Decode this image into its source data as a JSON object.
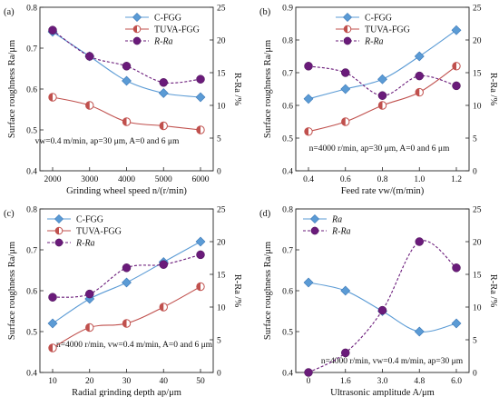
{
  "figure_title": "",
  "chart_data": [
    {
      "panel": "(a)",
      "type": "line",
      "xlabel": "Grinding wheel speed n/(r/min)",
      "ylabel": "Surface roughness Ra/μm",
      "ylabel2": "R-Ra /%",
      "x": [
        2000,
        3000,
        4000,
        5000,
        6000
      ],
      "xticks": [
        "2000",
        "3000",
        "4000",
        "5000",
        "6000"
      ],
      "ylim": [
        0.4,
        0.8
      ],
      "yticks": [
        "0.4",
        "0.5",
        "0.6",
        "0.7",
        "0.8"
      ],
      "y2lim": [
        0,
        25
      ],
      "y2ticks": [
        "0",
        "5",
        "10",
        "15",
        "20",
        "25"
      ],
      "condition": "vw=0.4 m/min, ap=30 μm, A=0 and 6 μm",
      "legend_position": "top-right",
      "series": [
        {
          "name": "C-FGG",
          "axis": "left",
          "marker": "diamond",
          "color": "#5b9bd5",
          "values": [
            0.74,
            0.68,
            0.62,
            0.59,
            0.58
          ]
        },
        {
          "name": "TUVA-FGG",
          "axis": "left",
          "marker": "half-circle",
          "color": "#c0504d",
          "values": [
            0.58,
            0.56,
            0.52,
            0.51,
            0.5
          ]
        },
        {
          "name": "R-Ra",
          "axis": "right",
          "marker": "circle",
          "color": "#6a1b7a",
          "dashed": true,
          "values": [
            21.5,
            17.5,
            16.0,
            13.5,
            14.0
          ]
        }
      ]
    },
    {
      "panel": "(b)",
      "type": "line",
      "xlabel": "Feed rate vw/(m/min)",
      "ylabel": "Surface roughness Ra/μm",
      "ylabel2": "R-Ra /%",
      "x": [
        0.4,
        0.6,
        0.8,
        1.0,
        1.2
      ],
      "xticks": [
        "0.4",
        "0.6",
        "0.8",
        "1.0",
        "1.2"
      ],
      "ylim": [
        0.4,
        0.9
      ],
      "yticks": [
        "0.4",
        "0.5",
        "0.6",
        "0.7",
        "0.8",
        "0.9"
      ],
      "y2lim": [
        0,
        25
      ],
      "y2ticks": [
        "0",
        "5",
        "10",
        "15",
        "20",
        "25"
      ],
      "condition": "n=4000 r/min, ap=30 μm, A=0 and 6 μm",
      "legend_position": "top-left",
      "series": [
        {
          "name": "C-FGG",
          "axis": "left",
          "marker": "diamond",
          "color": "#5b9bd5",
          "values": [
            0.62,
            0.65,
            0.68,
            0.75,
            0.83
          ]
        },
        {
          "name": "TUVA-FGG",
          "axis": "left",
          "marker": "half-circle",
          "color": "#c0504d",
          "values": [
            0.52,
            0.55,
            0.6,
            0.64,
            0.72
          ]
        },
        {
          "name": "R-Ra",
          "axis": "right",
          "marker": "circle",
          "color": "#6a1b7a",
          "dashed": true,
          "values": [
            16.0,
            15.0,
            11.5,
            14.5,
            13.0
          ]
        }
      ]
    },
    {
      "panel": "(c)",
      "type": "line",
      "xlabel": "Radial grinding depth ap/μm",
      "ylabel": "Surface roughness Ra/μm",
      "ylabel2": "R-Ra /%",
      "x": [
        10,
        20,
        30,
        40,
        50
      ],
      "xticks": [
        "10",
        "20",
        "30",
        "40",
        "50"
      ],
      "ylim": [
        0.4,
        0.8
      ],
      "yticks": [
        "0.4",
        "0.5",
        "0.6",
        "0.7",
        "0.8"
      ],
      "y2lim": [
        0,
        25
      ],
      "y2ticks": [
        "0",
        "5",
        "10",
        "15",
        "20",
        "25"
      ],
      "condition": "n=4000 r/min, vw=0.4 m/min, A=0 and 6 μm",
      "legend_position": "top-left",
      "series": [
        {
          "name": "C-FGG",
          "axis": "left",
          "marker": "diamond",
          "color": "#5b9bd5",
          "values": [
            0.52,
            0.58,
            0.62,
            0.67,
            0.72
          ]
        },
        {
          "name": "TUVA-FGG",
          "axis": "left",
          "marker": "half-circle",
          "color": "#c0504d",
          "values": [
            0.46,
            0.51,
            0.52,
            0.56,
            0.61
          ]
        },
        {
          "name": "R-Ra",
          "axis": "right",
          "marker": "circle",
          "color": "#6a1b7a",
          "dashed": true,
          "values": [
            11.5,
            12.0,
            16.0,
            16.5,
            18.0
          ]
        }
      ]
    },
    {
      "panel": "(d)",
      "type": "line",
      "xlabel": "Ultrasonic amplitude A/μm",
      "ylabel": "Surface roughness Ra/μm",
      "ylabel2": "R-Ra /%",
      "x": [
        0,
        1.6,
        3.0,
        4.8,
        6.0
      ],
      "xticks": [
        "0",
        "1.6",
        "3.0",
        "4.8",
        "6.0"
      ],
      "ylim": [
        0.4,
        0.8
      ],
      "yticks": [
        "0.4",
        "0.5",
        "0.6",
        "0.7",
        "0.8"
      ],
      "y2lim": [
        0,
        25
      ],
      "y2ticks": [
        "0",
        "5",
        "10",
        "15",
        "20",
        "25"
      ],
      "condition": "n=4000 r/min, vw=0.4 m/min, ap=30 μm",
      "legend_position": "top-left",
      "series": [
        {
          "name": "Ra",
          "axis": "left",
          "marker": "diamond",
          "color": "#5b9bd5",
          "values": [
            0.62,
            0.6,
            0.55,
            0.5,
            0.52
          ]
        },
        {
          "name": "R-Ra",
          "axis": "right",
          "marker": "circle",
          "color": "#6a1b7a",
          "dashed": true,
          "values": [
            0.0,
            3.0,
            9.5,
            20.0,
            16.0
          ]
        }
      ]
    }
  ]
}
